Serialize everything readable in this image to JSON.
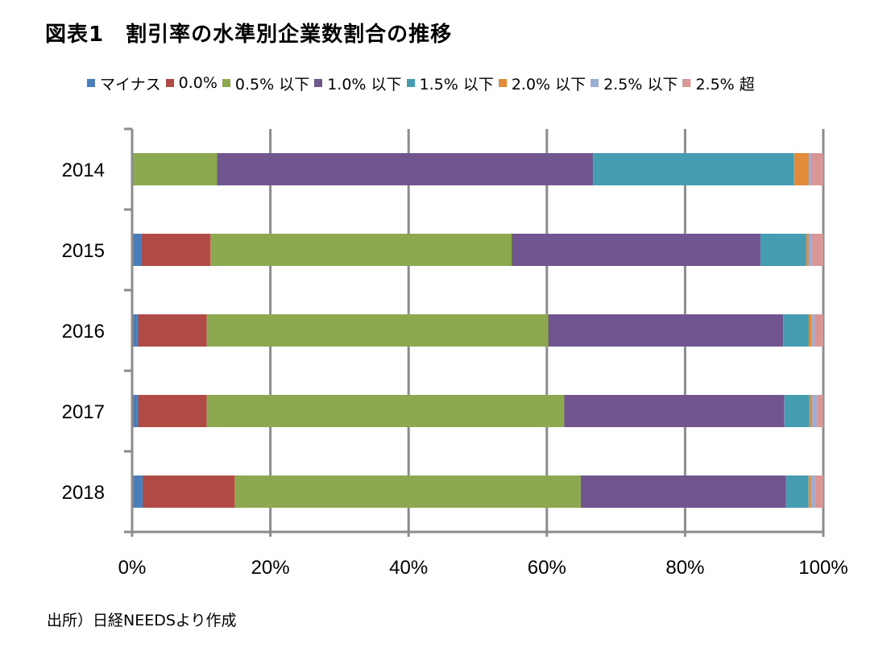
{
  "title": "図表1　割引率の水準別企業数割合の推移",
  "source": "出所）日経NEEDSより作成",
  "chart_data": {
    "type": "bar",
    "orientation": "horizontal",
    "stacked": "percent",
    "categories": [
      "2014",
      "2015",
      "2016",
      "2017",
      "2018"
    ],
    "xlim": [
      0,
      100
    ],
    "xticks": [
      "0%",
      "20%",
      "40%",
      "60%",
      "80%",
      "100%"
    ],
    "grid": true,
    "legend_position": "top",
    "series": [
      {
        "name": "マイナス",
        "color": "#4a7ebb",
        "values": [
          0,
          1.3,
          0.8,
          0.8,
          1.5
        ]
      },
      {
        "name": "0.0%",
        "color": "#b04a45",
        "values": [
          0,
          10.0,
          10.0,
          10.0,
          13.3
        ]
      },
      {
        "name": "0.5% 以下",
        "color": "#8ca94f",
        "values": [
          12.3,
          43.6,
          49.4,
          51.7,
          50.1
        ]
      },
      {
        "name": "1.0% 以下",
        "color": "#70558f",
        "values": [
          54.4,
          36.0,
          34.0,
          31.8,
          29.7
        ]
      },
      {
        "name": "1.5% 以下",
        "color": "#469db2",
        "values": [
          29.0,
          6.6,
          3.7,
          3.7,
          3.2
        ]
      },
      {
        "name": "2.0% 以下",
        "color": "#e28b3a",
        "values": [
          2.2,
          0.4,
          0.4,
          0.4,
          0.4
        ]
      },
      {
        "name": "2.5% 以下",
        "color": "#9aaed6",
        "values": [
          0.3,
          0.4,
          0.4,
          0.7,
          0.6
        ]
      },
      {
        "name": "2.5% 超",
        "color": "#d99695",
        "values": [
          1.8,
          1.7,
          1.3,
          0.9,
          1.2
        ]
      }
    ]
  }
}
